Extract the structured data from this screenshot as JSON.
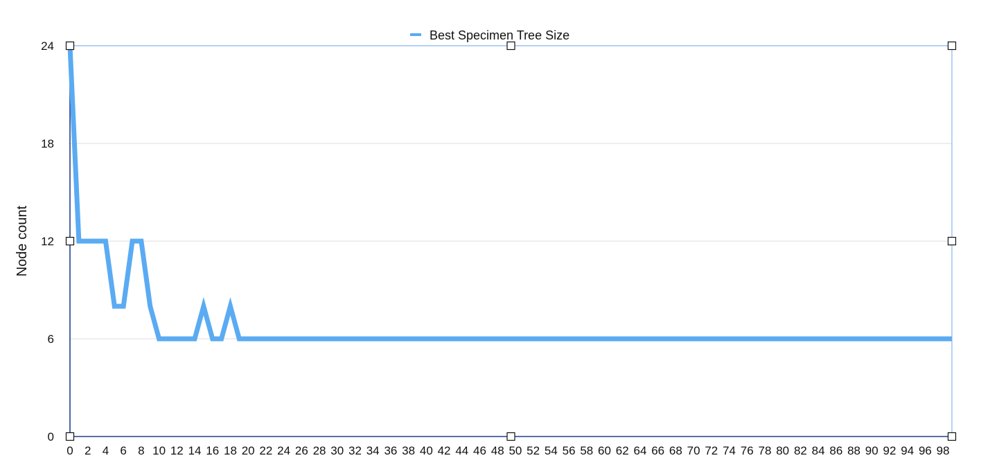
{
  "chart_data": {
    "type": "line",
    "title": "",
    "xlabel": "",
    "ylabel": "Node count",
    "xlim": [
      0,
      99
    ],
    "ylim": [
      0,
      24
    ],
    "yticks": [
      0,
      6,
      12,
      18,
      24
    ],
    "xticks": [
      0,
      2,
      4,
      6,
      8,
      10,
      12,
      14,
      16,
      18,
      20,
      22,
      24,
      26,
      28,
      30,
      32,
      34,
      36,
      38,
      40,
      42,
      44,
      46,
      48,
      50,
      52,
      54,
      56,
      58,
      60,
      62,
      64,
      66,
      68,
      70,
      72,
      74,
      76,
      78,
      80,
      82,
      84,
      86,
      88,
      90,
      92,
      94,
      96,
      98
    ],
    "grid": true,
    "legend_position": "top-center",
    "series": [
      {
        "name": "Best Specimen Tree Size",
        "color": "#5aabf2",
        "x": [
          0,
          1,
          2,
          3,
          4,
          5,
          6,
          7,
          8,
          9,
          10,
          11,
          12,
          13,
          14,
          15,
          16,
          17,
          18,
          19,
          20,
          21,
          22,
          23,
          24,
          25,
          26,
          27,
          28,
          29,
          30,
          31,
          32,
          33,
          34,
          35,
          36,
          37,
          38,
          39,
          40,
          41,
          42,
          43,
          44,
          45,
          46,
          47,
          48,
          49,
          50,
          51,
          52,
          53,
          54,
          55,
          56,
          57,
          58,
          59,
          60,
          61,
          62,
          63,
          64,
          65,
          66,
          67,
          68,
          69,
          70,
          71,
          72,
          73,
          74,
          75,
          76,
          77,
          78,
          79,
          80,
          81,
          82,
          83,
          84,
          85,
          86,
          87,
          88,
          89,
          90,
          91,
          92,
          93,
          94,
          95,
          96,
          97,
          98,
          99
        ],
        "values": [
          24,
          12,
          12,
          12,
          12,
          8,
          8,
          12,
          12,
          8,
          6,
          6,
          6,
          6,
          6,
          8,
          6,
          6,
          8,
          6,
          6,
          6,
          6,
          6,
          6,
          6,
          6,
          6,
          6,
          6,
          6,
          6,
          6,
          6,
          6,
          6,
          6,
          6,
          6,
          6,
          6,
          6,
          6,
          6,
          6,
          6,
          6,
          6,
          6,
          6,
          6,
          6,
          6,
          6,
          6,
          6,
          6,
          6,
          6,
          6,
          6,
          6,
          6,
          6,
          6,
          6,
          6,
          6,
          6,
          6,
          6,
          6,
          6,
          6,
          6,
          6,
          6,
          6,
          6,
          6,
          6,
          6,
          6,
          6,
          6,
          6,
          6,
          6,
          6,
          6,
          6,
          6,
          6,
          6,
          6,
          6,
          6,
          6,
          6,
          6
        ]
      }
    ]
  }
}
